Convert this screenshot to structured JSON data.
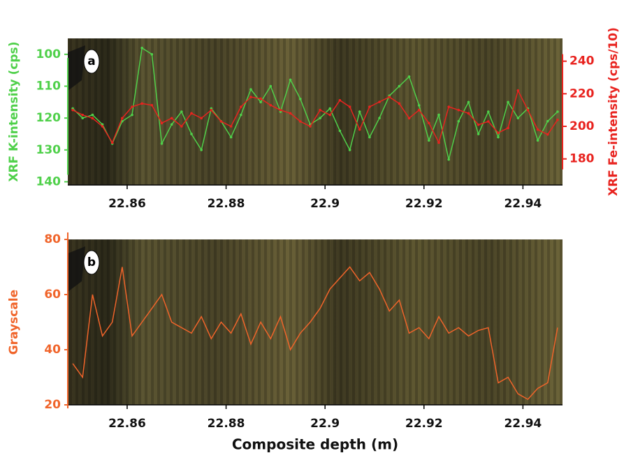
{
  "chart_data": [
    {
      "type": "line",
      "annotation": "a",
      "y_label": "XRF K-intensity (cps)",
      "y2_label": "XRF Fe-intensity (cps/10)",
      "x": [
        22.849,
        22.851,
        22.853,
        22.855,
        22.857,
        22.859,
        22.861,
        22.863,
        22.865,
        22.867,
        22.869,
        22.871,
        22.873,
        22.875,
        22.877,
        22.879,
        22.881,
        22.883,
        22.885,
        22.887,
        22.889,
        22.891,
        22.893,
        22.895,
        22.897,
        22.899,
        22.901,
        22.903,
        22.905,
        22.907,
        22.909,
        22.911,
        22.913,
        22.915,
        22.917,
        22.919,
        22.921,
        22.923,
        22.925,
        22.927,
        22.929,
        22.931,
        22.933,
        22.935,
        22.937,
        22.939,
        22.941,
        22.943,
        22.945,
        22.947
      ],
      "xlim": [
        22.848,
        22.948
      ],
      "xticks": [
        22.86,
        22.88,
        22.9,
        22.92,
        22.94
      ],
      "ylim": [
        141,
        95
      ],
      "yticks": [
        100,
        110,
        120,
        130,
        140
      ],
      "y2lim": [
        164,
        254
      ],
      "y2ticks": [
        180,
        200,
        220,
        240
      ],
      "series": [
        {
          "name": "K",
          "color": "#4fd04a",
          "values": [
            117,
            120,
            119,
            122,
            128,
            121,
            119,
            98,
            100,
            128,
            122,
            118,
            125,
            130,
            117,
            121,
            126,
            119,
            111,
            115,
            110,
            118,
            108,
            114,
            122,
            120,
            117,
            124,
            130,
            118,
            126,
            120,
            113,
            110,
            107,
            116,
            127,
            119,
            133,
            121,
            115,
            125,
            118,
            126,
            115,
            120,
            117,
            127,
            121,
            118
          ]
        },
        {
          "name": "Fe",
          "color": "#e8231f",
          "axis": "y2",
          "values": [
            210,
            207,
            205,
            200,
            190,
            205,
            212,
            214,
            213,
            202,
            205,
            200,
            208,
            205,
            210,
            203,
            200,
            212,
            218,
            217,
            213,
            210,
            208,
            203,
            200,
            210,
            207,
            216,
            212,
            198,
            212,
            215,
            218,
            214,
            205,
            210,
            202,
            190,
            212,
            210,
            208,
            201,
            203,
            196,
            199,
            222,
            210,
            198,
            195,
            204
          ]
        }
      ]
    },
    {
      "type": "line",
      "annotation": "b",
      "y_label": "Grayscale",
      "x_label": "Composite depth (m)",
      "x": [
        22.849,
        22.851,
        22.853,
        22.855,
        22.857,
        22.859,
        22.861,
        22.863,
        22.865,
        22.867,
        22.869,
        22.871,
        22.873,
        22.875,
        22.877,
        22.879,
        22.881,
        22.883,
        22.885,
        22.887,
        22.889,
        22.891,
        22.893,
        22.895,
        22.897,
        22.899,
        22.901,
        22.903,
        22.905,
        22.907,
        22.909,
        22.911,
        22.913,
        22.915,
        22.917,
        22.919,
        22.921,
        22.923,
        22.925,
        22.927,
        22.929,
        22.931,
        22.933,
        22.935,
        22.937,
        22.939,
        22.941,
        22.943,
        22.945,
        22.947
      ],
      "xlim": [
        22.848,
        22.948
      ],
      "xticks": [
        22.86,
        22.88,
        22.9,
        22.92,
        22.94
      ],
      "ylim": [
        20,
        80
      ],
      "yticks": [
        20,
        40,
        60,
        80
      ],
      "series": [
        {
          "name": "Grayscale",
          "color": "#f0642a",
          "values": [
            35,
            30,
            60,
            45,
            50,
            70,
            45,
            50,
            55,
            60,
            50,
            48,
            46,
            52,
            44,
            50,
            46,
            53,
            42,
            50,
            44,
            52,
            40,
            46,
            50,
            55,
            62,
            66,
            70,
            65,
            68,
            62,
            54,
            58,
            46,
            48,
            44,
            52,
            46,
            48,
            45,
            47,
            48,
            28,
            30,
            24,
            22,
            26,
            28,
            48
          ]
        }
      ]
    }
  ]
}
